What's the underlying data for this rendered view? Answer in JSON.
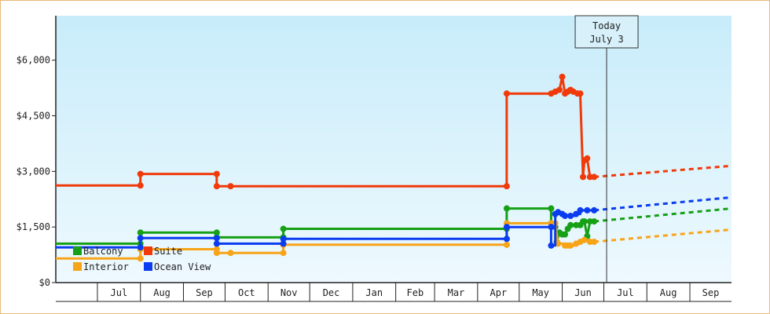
{
  "chart_data": {
    "type": "line",
    "title": "",
    "xlabel": "",
    "ylabel": "",
    "ylim": [
      0,
      7200
    ],
    "y_ticks": [
      0,
      1500,
      3000,
      4500,
      6000
    ],
    "y_tick_labels": [
      "$0",
      "$1,500",
      "$3,000",
      "$4,500",
      "$6,000"
    ],
    "x_months": [
      {
        "label": "Jul",
        "start": "2024-07-01",
        "end": "2024-08-01"
      },
      {
        "label": "Aug",
        "start": "2024-08-01",
        "end": "2024-09-01"
      },
      {
        "label": "Sep",
        "start": "2024-09-01",
        "end": "2024-10-01"
      },
      {
        "label": "Oct",
        "start": "2024-10-01",
        "end": "2024-11-01"
      },
      {
        "label": "Nov",
        "start": "2024-11-01",
        "end": "2024-12-01"
      },
      {
        "label": "Dec",
        "start": "2024-12-01",
        "end": "2025-01-01"
      },
      {
        "label": "Jan",
        "start": "2025-01-01",
        "end": "2025-02-01"
      },
      {
        "label": "Feb",
        "start": "2025-02-01",
        "end": "2025-03-01"
      },
      {
        "label": "Mar",
        "start": "2025-03-01",
        "end": "2025-04-01"
      },
      {
        "label": "Apr",
        "start": "2025-04-01",
        "end": "2025-05-01"
      },
      {
        "label": "May",
        "start": "2025-05-01",
        "end": "2025-06-01"
      },
      {
        "label": "Jun",
        "start": "2025-06-01",
        "end": "2025-07-01"
      },
      {
        "label": "Jul",
        "start": "2025-07-01",
        "end": "2025-08-01"
      },
      {
        "label": "Aug",
        "start": "2025-08-01",
        "end": "2025-09-01"
      },
      {
        "label": "Sep",
        "start": "2025-09-01",
        "end": "2025-10-01"
      }
    ],
    "x_range": [
      "2024-06-01",
      "2025-10-01"
    ],
    "today": {
      "date": "2025-07-03",
      "line1": "Today",
      "line2": "July 3"
    },
    "background_gradient": [
      "#c8ecfa",
      "#eef9fe"
    ],
    "legend_placement": "bottom-left",
    "series": [
      {
        "name": "Balcony",
        "color": "#16a016",
        "points": [
          [
            "2024-06-01",
            1050
          ],
          [
            "2024-08-01",
            1050
          ],
          [
            "2024-08-01",
            1350
          ],
          [
            "2024-09-25",
            1350
          ],
          [
            "2024-09-25",
            1220
          ],
          [
            "2024-11-12",
            1220
          ],
          [
            "2024-11-12",
            1450
          ],
          [
            "2025-04-22",
            1450
          ],
          [
            "2025-04-22",
            2000
          ],
          [
            "2025-05-24",
            2000
          ],
          [
            "2025-05-24",
            1600
          ],
          [
            "2025-05-27",
            1500
          ],
          [
            "2025-05-28",
            1100
          ],
          [
            "2025-05-30",
            1350
          ],
          [
            "2025-06-01",
            1300
          ],
          [
            "2025-06-03",
            1300
          ],
          [
            "2025-06-05",
            1450
          ],
          [
            "2025-06-07",
            1550
          ],
          [
            "2025-06-11",
            1550
          ],
          [
            "2025-06-14",
            1550
          ],
          [
            "2025-06-16",
            1650
          ],
          [
            "2025-06-17",
            1650
          ],
          [
            "2025-06-19",
            1250
          ],
          [
            "2025-06-21",
            1650
          ],
          [
            "2025-06-24",
            1650
          ]
        ],
        "forecast": [
          [
            "2025-06-24",
            1650
          ],
          [
            "2025-10-01",
            2000
          ]
        ]
      },
      {
        "name": "Suite",
        "color": "#f03a0a",
        "points": [
          [
            "2024-06-01",
            2620
          ],
          [
            "2024-08-01",
            2620
          ],
          [
            "2024-08-01",
            2930
          ],
          [
            "2024-09-25",
            2930
          ],
          [
            "2024-09-25",
            2600
          ],
          [
            "2024-10-05",
            2600
          ],
          [
            "2025-04-22",
            2600
          ],
          [
            "2025-04-22",
            5100
          ],
          [
            "2025-05-24",
            5100
          ],
          [
            "2025-05-27",
            5150
          ],
          [
            "2025-05-30",
            5200
          ],
          [
            "2025-06-01",
            5550
          ],
          [
            "2025-06-03",
            5100
          ],
          [
            "2025-06-05",
            5150
          ],
          [
            "2025-06-07",
            5200
          ],
          [
            "2025-06-09",
            5150
          ],
          [
            "2025-06-12",
            5100
          ],
          [
            "2025-06-14",
            5100
          ],
          [
            "2025-06-16",
            2850
          ],
          [
            "2025-06-17",
            3300
          ],
          [
            "2025-06-19",
            3350
          ],
          [
            "2025-06-21",
            2850
          ],
          [
            "2025-06-24",
            2850
          ]
        ],
        "forecast": [
          [
            "2025-06-24",
            2850
          ],
          [
            "2025-10-01",
            3150
          ]
        ]
      },
      {
        "name": "Interior",
        "color": "#f7a418",
        "points": [
          [
            "2024-06-01",
            650
          ],
          [
            "2024-08-01",
            650
          ],
          [
            "2024-08-01",
            900
          ],
          [
            "2024-09-25",
            900
          ],
          [
            "2024-09-25",
            800
          ],
          [
            "2024-10-05",
            800
          ],
          [
            "2024-11-12",
            800
          ],
          [
            "2024-11-12",
            1020
          ],
          [
            "2025-04-22",
            1020
          ],
          [
            "2025-04-22",
            1600
          ],
          [
            "2025-05-24",
            1600
          ],
          [
            "2025-05-27",
            1600
          ],
          [
            "2025-05-29",
            1050
          ],
          [
            "2025-06-03",
            1000
          ],
          [
            "2025-06-05",
            1000
          ],
          [
            "2025-06-07",
            1000
          ],
          [
            "2025-06-11",
            1050
          ],
          [
            "2025-06-14",
            1100
          ],
          [
            "2025-06-17",
            1150
          ],
          [
            "2025-06-21",
            1100
          ],
          [
            "2025-06-24",
            1100
          ]
        ],
        "forecast": [
          [
            "2025-06-24",
            1100
          ],
          [
            "2025-10-01",
            1430
          ]
        ]
      },
      {
        "name": "Ocean View",
        "color": "#0a3cf0",
        "points": [
          [
            "2024-06-01",
            950
          ],
          [
            "2024-08-01",
            950
          ],
          [
            "2024-08-01",
            1200
          ],
          [
            "2024-09-25",
            1200
          ],
          [
            "2024-09-25",
            1050
          ],
          [
            "2024-11-12",
            1050
          ],
          [
            "2024-11-12",
            1180
          ],
          [
            "2025-04-22",
            1180
          ],
          [
            "2025-04-22",
            1500
          ],
          [
            "2025-05-24",
            1500
          ],
          [
            "2025-05-24",
            1000
          ],
          [
            "2025-05-27",
            1850
          ],
          [
            "2025-05-29",
            1900
          ],
          [
            "2025-06-01",
            1850
          ],
          [
            "2025-06-03",
            1800
          ],
          [
            "2025-06-07",
            1800
          ],
          [
            "2025-06-11",
            1850
          ],
          [
            "2025-06-14",
            1950
          ],
          [
            "2025-06-19",
            1950
          ],
          [
            "2025-06-24",
            1950
          ]
        ],
        "forecast": [
          [
            "2025-06-24",
            1950
          ],
          [
            "2025-10-01",
            2300
          ]
        ]
      }
    ]
  }
}
